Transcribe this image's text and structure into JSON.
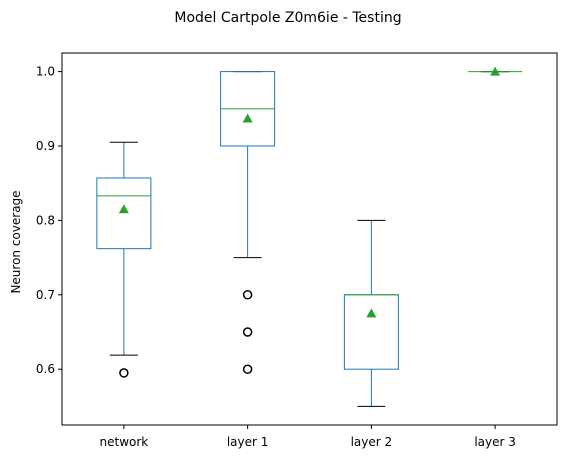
{
  "chart_data": {
    "type": "box",
    "title": "Model Cartpole Z0m6ie - Testing",
    "xlabel": "",
    "ylabel": "Neuron coverage",
    "ylim": [
      0.525,
      1.025
    ],
    "yticks": [
      0.6,
      0.7,
      0.8,
      0.9,
      1.0
    ],
    "ytick_labels": [
      "0.6",
      "0.7",
      "0.8",
      "0.9",
      "1.0"
    ],
    "grid": false,
    "colors": {
      "box": "#1f77b4",
      "median": "#2ca02c",
      "mean": "#2ca02c",
      "whisker_cap": "#000000",
      "flier": "#000000"
    },
    "categories": [
      "network",
      "layer 1",
      "layer 2",
      "layer 3"
    ],
    "boxes": [
      {
        "name": "network",
        "whisker_low": 0.619,
        "q1": 0.762,
        "median": 0.833,
        "q3": 0.857,
        "whisker_high": 0.905,
        "mean": 0.815,
        "fliers": [
          0.595
        ]
      },
      {
        "name": "layer 1",
        "whisker_low": 0.75,
        "q1": 0.9,
        "median": 0.95,
        "q3": 1.0,
        "whisker_high": 1.0,
        "mean": 0.937,
        "fliers": [
          0.7,
          0.65,
          0.6
        ]
      },
      {
        "name": "layer 2",
        "whisker_low": 0.55,
        "q1": 0.6,
        "median": 0.7,
        "q3": 0.7,
        "whisker_high": 0.8,
        "mean": 0.675,
        "fliers": []
      },
      {
        "name": "layer 3",
        "whisker_low": 1.0,
        "q1": 1.0,
        "median": 1.0,
        "q3": 1.0,
        "whisker_high": 1.0,
        "mean": 1.0,
        "fliers": []
      }
    ]
  }
}
